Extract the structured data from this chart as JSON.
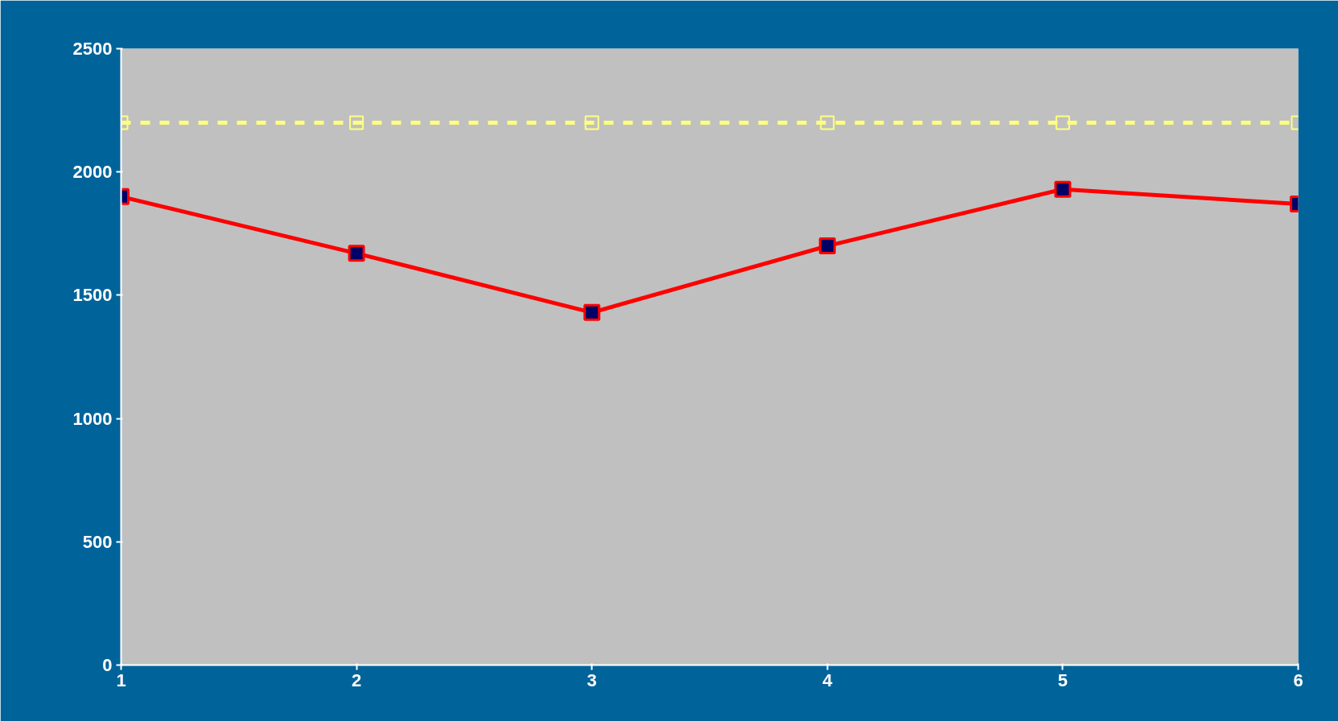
{
  "chart_data": {
    "type": "line",
    "x": [
      1,
      2,
      3,
      4,
      5,
      6
    ],
    "series": [
      {
        "color": "#ff0000",
        "values": [
          1900,
          1670,
          1430,
          1700,
          1930,
          1870
        ],
        "line_style": "solid",
        "marker": "square"
      },
      {
        "color": "#ffff80",
        "values": [
          2200,
          2200,
          2200,
          2200,
          2200,
          2200
        ],
        "line_style": "dashed",
        "marker": "square"
      }
    ],
    "xlim": [
      1,
      6
    ],
    "xticks": [
      1,
      2,
      3,
      4,
      5,
      6
    ],
    "ylim": [
      0,
      2500
    ],
    "yticks": [
      0,
      500,
      1000,
      1500,
      2000,
      2500
    ],
    "grid": false
  }
}
